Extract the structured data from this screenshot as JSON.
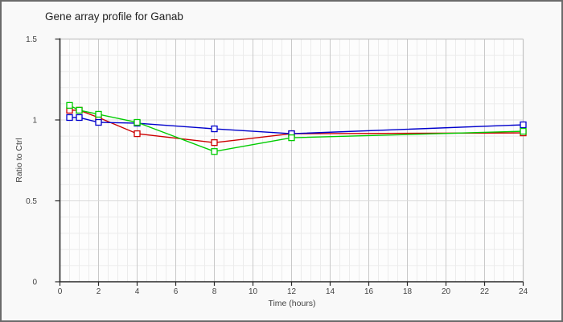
{
  "page": {
    "background": "#f9f9f9",
    "border_color": "#6b6b6b"
  },
  "chart": {
    "title": "Gene array profile for Ganab",
    "xlabel": "Time (hours)",
    "ylabel": "Ratio to Ctrl"
  },
  "chart_data": {
    "type": "line",
    "title": "Gene array profile for Ganab",
    "xlabel": "Time (hours)",
    "ylabel": "Ratio to Ctrl",
    "x": [
      0.5,
      1,
      2,
      4,
      8,
      12,
      24
    ],
    "series": [
      {
        "name": "series-red",
        "color": "#cc0000",
        "values": [
          1.06,
          1.06,
          1.015,
          0.915,
          0.86,
          0.915,
          0.92
        ]
      },
      {
        "name": "series-blue",
        "color": "#0000cc",
        "values": [
          1.015,
          1.015,
          0.985,
          0.98,
          0.945,
          0.915,
          0.97
        ]
      },
      {
        "name": "series-green",
        "color": "#00cc00",
        "values": [
          1.09,
          1.06,
          1.035,
          0.985,
          0.805,
          0.89,
          0.93
        ]
      }
    ],
    "xlim": [
      0,
      24
    ],
    "ylim": [
      0,
      1.5
    ],
    "x_ticks": [
      0,
      2,
      4,
      6,
      8,
      10,
      12,
      14,
      16,
      18,
      20,
      22,
      24
    ],
    "y_ticks": [
      0,
      0.5,
      1,
      1.5
    ],
    "y_tick_labels": [
      "0",
      "0.5",
      "1",
      "1.5"
    ],
    "x_minor_step": 0.5,
    "y_minor_step": 0.1,
    "marker": "square",
    "legend": "none",
    "grid": "on",
    "colors": {
      "axis": "#2a2a2a",
      "frame": "#c4c4c4",
      "grid_major_v": "#c9c9c9",
      "grid_major_h": "#dadada",
      "grid_minor": "#ececec",
      "tick_text": "#444444",
      "plot_bg": "#fdfdfd"
    }
  }
}
